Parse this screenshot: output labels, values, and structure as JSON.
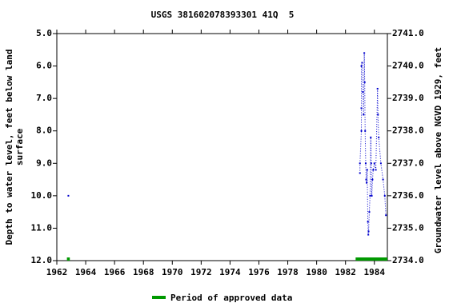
{
  "chart_data": {
    "type": "line",
    "title": "USGS 381602078393301 41Q  5",
    "ylabel": [
      "Depth to water level, feet below land",
      "surface"
    ],
    "y2label": "Groundwater level above NGVD 1929, feet",
    "xlim": [
      1962,
      1984.9
    ],
    "xticks": [
      1962,
      1964,
      1966,
      1968,
      1970,
      1972,
      1974,
      1976,
      1978,
      1980,
      1982,
      1984
    ],
    "ylim": [
      5.0,
      12.0
    ],
    "yticks": [
      {
        "value": 5,
        "label": "5.0"
      },
      {
        "value": 6,
        "label": "6.0"
      },
      {
        "value": 7,
        "label": "7.0"
      },
      {
        "value": 8,
        "label": "8.0"
      },
      {
        "value": 9,
        "label": "9.0"
      },
      {
        "value": 10,
        "label": "10.0"
      },
      {
        "value": 11,
        "label": "11.0"
      },
      {
        "value": 12,
        "label": "12.0"
      }
    ],
    "y2lim": [
      2741.0,
      2734.0
    ],
    "y2ticks": [
      {
        "value": 2741,
        "label": "2741.0"
      },
      {
        "value": 2740,
        "label": "2740.0"
      },
      {
        "value": 2739,
        "label": "2739.0"
      },
      {
        "value": 2738,
        "label": "2738.0"
      },
      {
        "value": 2737,
        "label": "2737.0"
      },
      {
        "value": 2736,
        "label": "2736.0"
      },
      {
        "value": 2735,
        "label": "2735.0"
      },
      {
        "value": 2734,
        "label": "2734.0"
      }
    ],
    "series": [
      {
        "color": "#0000cc",
        "x": [
          1962.8,
          null,
          1983.0,
          1983.0,
          1983.1,
          1983.1,
          1983.1,
          1983.15,
          1983.2,
          1983.25,
          1983.3,
          1983.33,
          1983.36,
          1983.4,
          1983.43,
          1983.46,
          1983.5,
          1983.55,
          1983.58,
          1983.6,
          1983.65,
          1983.7,
          1983.75,
          1983.78,
          1983.82,
          1983.87,
          1983.92,
          1984.0,
          1984.1,
          1984.22,
          1984.25,
          1984.3,
          1984.45,
          1984.6,
          1984.72,
          1984.8
        ],
        "values": [
          10.0,
          null,
          9.3,
          9.0,
          8.0,
          7.3,
          6.0,
          5.9,
          6.8,
          7.5,
          5.6,
          6.5,
          8.0,
          9.0,
          9.5,
          9.6,
          9.2,
          10.8,
          11.2,
          11.1,
          10.5,
          10.0,
          8.2,
          9.0,
          10.0,
          9.5,
          9.2,
          9.0,
          9.2,
          6.7,
          7.5,
          8.2,
          9.0,
          9.5,
          10.0,
          10.6
        ]
      }
    ],
    "approved": {
      "name": "Period of approved data",
      "color": "#009900",
      "periods": [
        [
          1962.7,
          1962.9
        ],
        [
          1982.7,
          1984.9
        ]
      ]
    }
  }
}
